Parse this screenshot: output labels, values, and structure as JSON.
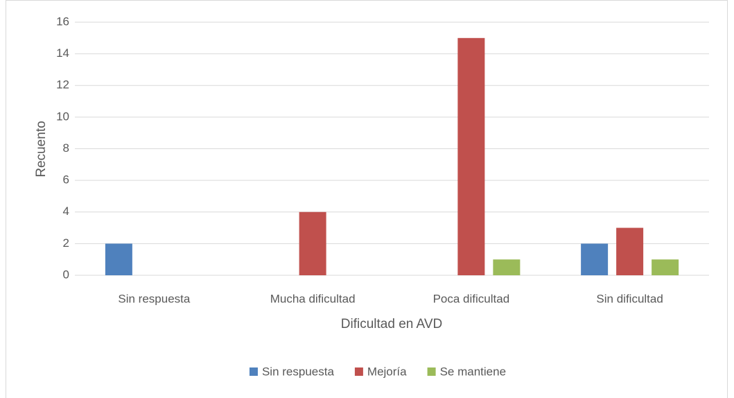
{
  "chart_data": {
    "type": "bar",
    "x_label": "Dificultad en AVD",
    "y_label": "Recuento",
    "categories": [
      "Sin respuesta",
      "Mucha dificultad",
      "Poca dificultad",
      "Sin dificultad"
    ],
    "series": [
      {
        "name": "Sin respuesta",
        "color": "#4f81bd",
        "values": [
          2,
          0,
          0,
          2
        ]
      },
      {
        "name": "Mejoría",
        "color": "#c0504d",
        "values": [
          0,
          4,
          15,
          3
        ]
      },
      {
        "name": "Se mantiene",
        "color": "#9bbb59",
        "values": [
          0,
          0,
          1,
          1
        ]
      }
    ],
    "ylim": [
      0,
      16
    ],
    "yticks": [
      0,
      2,
      4,
      6,
      8,
      10,
      12,
      14,
      16
    ],
    "grid": true,
    "legend": "bottom"
  }
}
